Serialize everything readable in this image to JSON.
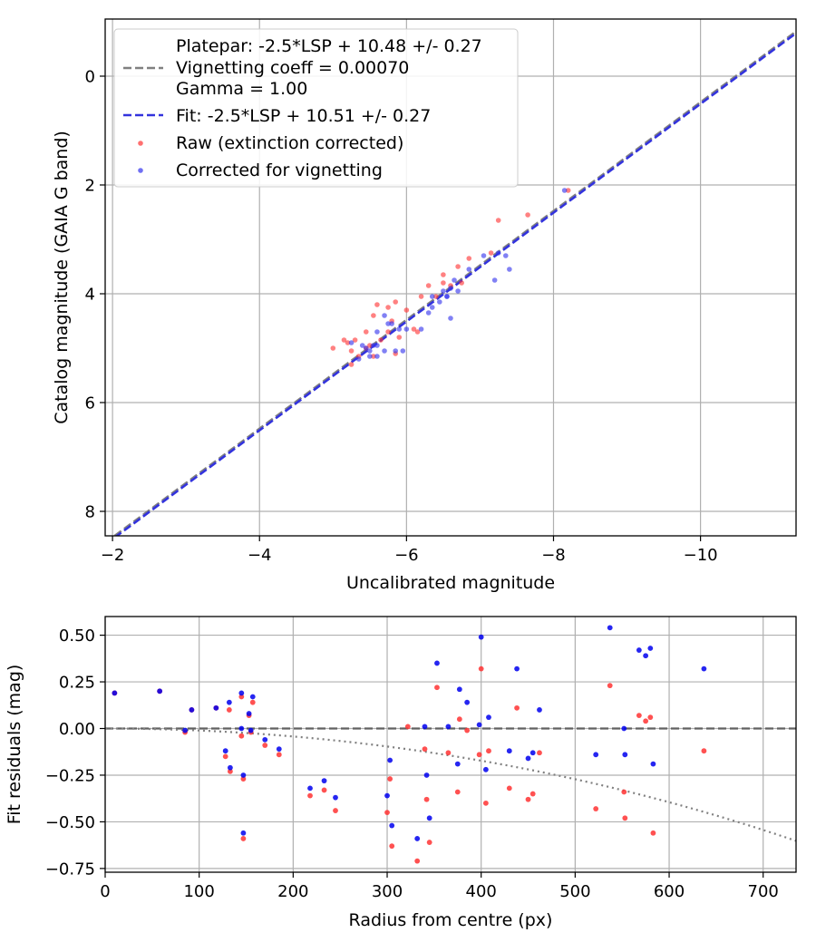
{
  "chart_data": [
    {
      "type": "scatter",
      "xlabel": "Uncalibrated magnitude",
      "ylabel": "Catalog magnitude (GAIA G band)",
      "xlim": [
        -1.9,
        -11.3
      ],
      "ylim": [
        8.45,
        -1.05
      ],
      "x_inverted": true,
      "y_inverted": true,
      "grid": true,
      "legend_position": "top-left",
      "xticks": [
        -2,
        -4,
        -6,
        -8,
        -10
      ],
      "yticks": [
        0,
        2,
        4,
        6,
        8
      ],
      "xtick_labels": [
        "−2",
        "−4",
        "−6",
        "−8",
        "−10"
      ],
      "ytick_labels": [
        "0",
        "2",
        "4",
        "6",
        "8"
      ],
      "legend": {
        "platepar_line1": "Platepar: -2.5*LSP + 10.48 +/- 0.27",
        "platepar_line2": "Vignetting coeff = 0.00070",
        "platepar_line3": "Gamma = 1.00",
        "fit": "Fit: -2.5*LSP + 10.51 +/- 0.27",
        "raw": "Raw (extinction corrected)",
        "corrected": "Corrected for vignetting"
      },
      "lines": [
        {
          "key": "platepar",
          "slope": 1.0,
          "intercept": 10.48,
          "color": "#808080",
          "dash": "dashed"
        },
        {
          "key": "fit",
          "slope": 1.0,
          "intercept": 10.51,
          "color": "#3333dd",
          "dash": "dashed"
        }
      ],
      "series": [
        {
          "key": "raw",
          "color": "#ff3333",
          "points": [
            [
              -8.2,
              2.1
            ],
            [
              -7.65,
              2.55
            ],
            [
              -7.25,
              2.65
            ],
            [
              -7.15,
              3.25
            ],
            [
              -6.85,
              3.35
            ],
            [
              -6.7,
              3.5
            ],
            [
              -6.5,
              3.65
            ],
            [
              -6.5,
              3.8
            ],
            [
              -6.75,
              3.8
            ],
            [
              -6.3,
              3.85
            ],
            [
              -6.6,
              3.85
            ],
            [
              -6.4,
              4.05
            ],
            [
              -6.2,
              4.05
            ],
            [
              -5.85,
              4.15
            ],
            [
              -5.75,
              4.25
            ],
            [
              -5.6,
              4.2
            ],
            [
              -6.0,
              4.3
            ],
            [
              -5.55,
              4.4
            ],
            [
              -5.8,
              4.5
            ],
            [
              -6.1,
              4.65
            ],
            [
              -5.75,
              4.7
            ],
            [
              -5.45,
              4.7
            ],
            [
              -6.15,
              4.7
            ],
            [
              -5.9,
              4.8
            ],
            [
              -5.3,
              4.85
            ],
            [
              -5.15,
              4.85
            ],
            [
              -5.65,
              4.85
            ],
            [
              -5.0,
              5.0
            ],
            [
              -5.25,
              5.05
            ],
            [
              -5.35,
              5.15
            ],
            [
              -5.55,
              5.15
            ],
            [
              -5.45,
              5.0
            ],
            [
              -5.25,
              5.3
            ],
            [
              -5.85,
              5.1
            ],
            [
              -5.5,
              4.95
            ],
            [
              -5.2,
              4.9
            ]
          ]
        },
        {
          "key": "corrected",
          "color": "#3333ee",
          "points": [
            [
              -8.15,
              2.1
            ],
            [
              -7.25,
              3.25
            ],
            [
              -7.4,
              3.55
            ],
            [
              -7.35,
              3.3
            ],
            [
              -7.05,
              3.3
            ],
            [
              -7.2,
              3.75
            ],
            [
              -6.85,
              3.55
            ],
            [
              -6.65,
              3.75
            ],
            [
              -6.6,
              3.9
            ],
            [
              -6.5,
              3.95
            ],
            [
              -6.55,
              4.05
            ],
            [
              -6.35,
              4.05
            ],
            [
              -6.55,
              4.05
            ],
            [
              -6.7,
              3.95
            ],
            [
              -6.45,
              4.15
            ],
            [
              -6.6,
              4.45
            ],
            [
              -6.35,
              4.25
            ],
            [
              -6.3,
              4.35
            ],
            [
              -6.2,
              4.65
            ],
            [
              -6.0,
              4.65
            ],
            [
              -5.8,
              4.55
            ],
            [
              -5.7,
              4.4
            ],
            [
              -5.75,
              4.55
            ],
            [
              -5.6,
              4.7
            ],
            [
              -5.55,
              4.95
            ],
            [
              -5.45,
              5.0
            ],
            [
              -5.5,
              5.05
            ],
            [
              -5.6,
              4.95
            ],
            [
              -5.7,
              5.05
            ],
            [
              -5.5,
              5.15
            ],
            [
              -5.35,
              5.2
            ],
            [
              -5.25,
              4.9
            ],
            [
              -5.85,
              5.05
            ],
            [
              -5.95,
              5.05
            ],
            [
              -5.6,
              5.15
            ],
            [
              -5.9,
              4.65
            ],
            [
              -5.4,
              4.95
            ]
          ]
        }
      ]
    },
    {
      "type": "scatter",
      "xlabel": "Radius from centre (px)",
      "ylabel": "Fit residuals (mag)",
      "xlim": [
        0,
        735
      ],
      "ylim": [
        -0.77,
        0.6
      ],
      "grid": true,
      "xticks": [
        0,
        100,
        200,
        300,
        400,
        500,
        600,
        700
      ],
      "yticks": [
        -0.75,
        -0.5,
        -0.25,
        0.0,
        0.25,
        0.5
      ],
      "xtick_labels": [
        "0",
        "100",
        "200",
        "300",
        "400",
        "500",
        "600",
        "700"
      ],
      "ytick_labels": [
        "−0.75",
        "−0.50",
        "−0.25",
        "0.00",
        "0.25",
        "0.50"
      ],
      "reference_line": {
        "y": 0.0,
        "color": "#606060",
        "dash": "dashed"
      },
      "vignetting_curve": {
        "coeff": 0.0007,
        "color": "#808080",
        "dash": "dotted"
      },
      "series": [
        {
          "key": "raw",
          "color": "#ff3333",
          "points": [
            [
              10,
              0.19
            ],
            [
              58,
              0.2
            ],
            [
              85,
              -0.02
            ],
            [
              92,
              0.1
            ],
            [
              118,
              0.11
            ],
            [
              128,
              -0.15
            ],
            [
              132,
              0.1
            ],
            [
              133,
              -0.23
            ],
            [
              145,
              0.17
            ],
            [
              145,
              -0.04
            ],
            [
              147,
              -0.27
            ],
            [
              147,
              -0.59
            ],
            [
              153,
              0.07
            ],
            [
              155,
              -0.02
            ],
            [
              157,
              0.14
            ],
            [
              170,
              -0.09
            ],
            [
              185,
              -0.14
            ],
            [
              218,
              -0.36
            ],
            [
              233,
              -0.33
            ],
            [
              245,
              -0.44
            ],
            [
              300,
              -0.45
            ],
            [
              303,
              -0.27
            ],
            [
              305,
              -0.63
            ],
            [
              322,
              0.01
            ],
            [
              332,
              -0.71
            ],
            [
              340,
              -0.11
            ],
            [
              342,
              -0.38
            ],
            [
              345,
              -0.61
            ],
            [
              353,
              0.22
            ],
            [
              365,
              -0.13
            ],
            [
              375,
              -0.34
            ],
            [
              377,
              0.05
            ],
            [
              385,
              -0.01
            ],
            [
              398,
              -0.14
            ],
            [
              400,
              0.32
            ],
            [
              405,
              -0.4
            ],
            [
              408,
              -0.12
            ],
            [
              430,
              -0.32
            ],
            [
              438,
              0.11
            ],
            [
              450,
              -0.38
            ],
            [
              455,
              -0.35
            ],
            [
              462,
              -0.13
            ],
            [
              522,
              -0.43
            ],
            [
              537,
              0.23
            ],
            [
              552,
              -0.34
            ],
            [
              553,
              -0.48
            ],
            [
              568,
              0.07
            ],
            [
              575,
              0.04
            ],
            [
              580,
              0.06
            ],
            [
              583,
              -0.56
            ],
            [
              637,
              -0.12
            ]
          ]
        },
        {
          "key": "corrected",
          "color": "#0000ee",
          "points": [
            [
              10,
              0.19
            ],
            [
              58,
              0.2
            ],
            [
              85,
              -0.01
            ],
            [
              92,
              0.1
            ],
            [
              118,
              0.11
            ],
            [
              128,
              -0.12
            ],
            [
              132,
              0.14
            ],
            [
              133,
              -0.21
            ],
            [
              145,
              0.19
            ],
            [
              145,
              0.0
            ],
            [
              147,
              -0.25
            ],
            [
              147,
              -0.56
            ],
            [
              153,
              0.08
            ],
            [
              155,
              -0.01
            ],
            [
              157,
              0.17
            ],
            [
              170,
              -0.06
            ],
            [
              185,
              -0.11
            ],
            [
              218,
              -0.32
            ],
            [
              233,
              -0.28
            ],
            [
              245,
              -0.37
            ],
            [
              300,
              -0.36
            ],
            [
              303,
              -0.17
            ],
            [
              305,
              -0.52
            ],
            [
              332,
              -0.59
            ],
            [
              340,
              0.01
            ],
            [
              342,
              -0.25
            ],
            [
              345,
              -0.48
            ],
            [
              353,
              0.35
            ],
            [
              365,
              0.01
            ],
            [
              375,
              -0.19
            ],
            [
              377,
              0.21
            ],
            [
              385,
              0.14
            ],
            [
              398,
              0.02
            ],
            [
              400,
              0.49
            ],
            [
              405,
              -0.22
            ],
            [
              408,
              0.06
            ],
            [
              430,
              -0.12
            ],
            [
              438,
              0.32
            ],
            [
              450,
              -0.16
            ],
            [
              455,
              -0.13
            ],
            [
              462,
              0.1
            ],
            [
              522,
              -0.14
            ],
            [
              537,
              0.54
            ],
            [
              552,
              0.0
            ],
            [
              553,
              -0.14
            ],
            [
              568,
              0.42
            ],
            [
              575,
              0.39
            ],
            [
              580,
              0.43
            ],
            [
              583,
              -0.19
            ],
            [
              637,
              0.32
            ]
          ]
        }
      ]
    }
  ]
}
